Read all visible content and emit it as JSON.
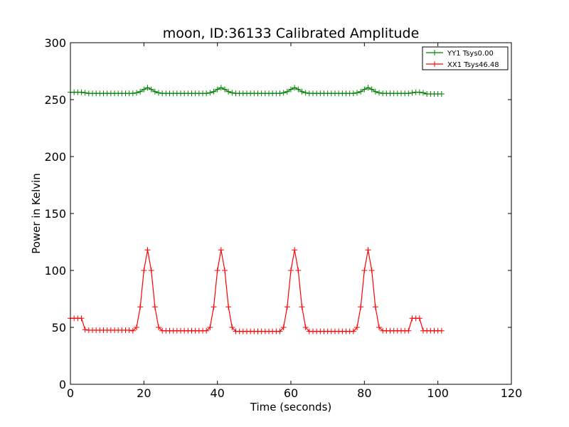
{
  "chart_data": {
    "type": "line",
    "title": "moon, ID:36133 Calibrated Amplitude",
    "xlabel": "Time (seconds)",
    "ylabel": "Power in Kelvin",
    "xlim": [
      0,
      120
    ],
    "ylim": [
      0,
      300
    ],
    "x_ticks": [
      0,
      20,
      40,
      60,
      80,
      100,
      120
    ],
    "y_ticks": [
      0,
      50,
      100,
      150,
      200,
      250,
      300
    ],
    "x_tick_labels": [
      "0",
      "20",
      "40",
      "60",
      "80",
      "100",
      "120"
    ],
    "y_tick_labels": [
      "0",
      "50",
      "100",
      "150",
      "200",
      "250",
      "300"
    ],
    "grid": false,
    "legend_position": "top-right",
    "marker": "plus",
    "series": [
      {
        "name": "YY1 Tsys0.00",
        "color": "#008000",
        "x": [
          0,
          1,
          2,
          3,
          4,
          5,
          6,
          7,
          8,
          9,
          10,
          11,
          12,
          13,
          14,
          15,
          16,
          17,
          18,
          19,
          20,
          21,
          22,
          23,
          24,
          25,
          26,
          27,
          28,
          29,
          30,
          31,
          32,
          33,
          34,
          35,
          36,
          37,
          38,
          39,
          40,
          41,
          42,
          43,
          44,
          45,
          46,
          47,
          48,
          49,
          50,
          51,
          52,
          53,
          54,
          55,
          56,
          57,
          58,
          59,
          60,
          61,
          62,
          63,
          64,
          65,
          66,
          67,
          68,
          69,
          70,
          71,
          72,
          73,
          74,
          75,
          76,
          77,
          78,
          79,
          80,
          81,
          82,
          83,
          84,
          85,
          86,
          87,
          88,
          89,
          90,
          91,
          92,
          93,
          94,
          95,
          96,
          97,
          98,
          99,
          100,
          101
        ],
        "values": [
          256.5,
          256.5,
          256.5,
          256.5,
          256.0,
          255.5,
          255.5,
          255.5,
          255.5,
          255.5,
          255.5,
          255.5,
          255.5,
          255.5,
          255.5,
          255.5,
          255.5,
          255.5,
          256.0,
          257.0,
          259.0,
          260.5,
          259.0,
          257.0,
          256.0,
          255.5,
          255.5,
          255.5,
          255.5,
          255.5,
          255.5,
          255.5,
          255.5,
          255.5,
          255.5,
          255.5,
          255.5,
          255.5,
          256.0,
          257.0,
          259.0,
          260.5,
          259.0,
          257.0,
          256.0,
          255.5,
          255.5,
          255.5,
          255.5,
          255.5,
          255.5,
          255.5,
          255.5,
          255.5,
          255.5,
          255.5,
          255.5,
          255.5,
          256.0,
          257.0,
          259.0,
          260.5,
          259.0,
          257.0,
          256.0,
          255.5,
          255.5,
          255.5,
          255.5,
          255.5,
          255.5,
          255.5,
          255.5,
          255.5,
          255.5,
          255.5,
          255.5,
          255.5,
          256.0,
          257.0,
          259.0,
          260.5,
          259.0,
          257.0,
          256.0,
          255.5,
          255.5,
          255.5,
          255.5,
          255.5,
          255.5,
          255.5,
          255.5,
          256.0,
          256.5,
          256.5,
          256.0,
          255.0,
          255.0,
          255.0,
          255.0,
          255.0
        ]
      },
      {
        "name": "XX1 Tsys46.48",
        "color": "#ff0000",
        "x": [
          0,
          1,
          2,
          3,
          4,
          5,
          6,
          7,
          8,
          9,
          10,
          11,
          12,
          13,
          14,
          15,
          16,
          17,
          18,
          19,
          20,
          21,
          22,
          23,
          24,
          25,
          26,
          27,
          28,
          29,
          30,
          31,
          32,
          33,
          34,
          35,
          36,
          37,
          38,
          39,
          40,
          41,
          42,
          43,
          44,
          45,
          46,
          47,
          48,
          49,
          50,
          51,
          52,
          53,
          54,
          55,
          56,
          57,
          58,
          59,
          60,
          61,
          62,
          63,
          64,
          65,
          66,
          67,
          68,
          69,
          70,
          71,
          72,
          73,
          74,
          75,
          76,
          77,
          78,
          79,
          80,
          81,
          82,
          83,
          84,
          85,
          86,
          87,
          88,
          89,
          90,
          91,
          92,
          93,
          94,
          95,
          96,
          97,
          98,
          99,
          100,
          101
        ],
        "values": [
          58.0,
          58.0,
          58.0,
          58.0,
          48.0,
          47.5,
          47.5,
          47.5,
          47.5,
          47.5,
          47.5,
          47.5,
          47.5,
          47.5,
          47.5,
          47.5,
          47.5,
          47.0,
          50.0,
          68.0,
          100.0,
          118.0,
          100.0,
          68.0,
          50.0,
          47.0,
          47.0,
          47.0,
          47.0,
          47.0,
          47.0,
          47.0,
          47.0,
          47.0,
          47.0,
          47.0,
          47.0,
          47.0,
          50.0,
          68.0,
          100.0,
          118.0,
          100.0,
          68.0,
          50.0,
          46.5,
          46.5,
          46.5,
          46.5,
          46.5,
          46.5,
          46.5,
          46.5,
          46.5,
          46.5,
          46.5,
          46.5,
          46.5,
          50.0,
          68.0,
          100.0,
          118.0,
          100.0,
          68.0,
          50.0,
          46.5,
          46.5,
          46.5,
          46.5,
          46.5,
          46.5,
          46.5,
          46.5,
          46.5,
          46.5,
          46.5,
          46.5,
          46.5,
          50.0,
          68.0,
          100.0,
          118.0,
          100.0,
          68.0,
          50.0,
          47.0,
          47.0,
          47.0,
          47.0,
          47.0,
          47.0,
          47.0,
          47.0,
          58.0,
          58.0,
          58.0,
          47.0,
          47.0,
          47.0,
          47.0,
          47.0,
          47.0
        ]
      }
    ]
  }
}
